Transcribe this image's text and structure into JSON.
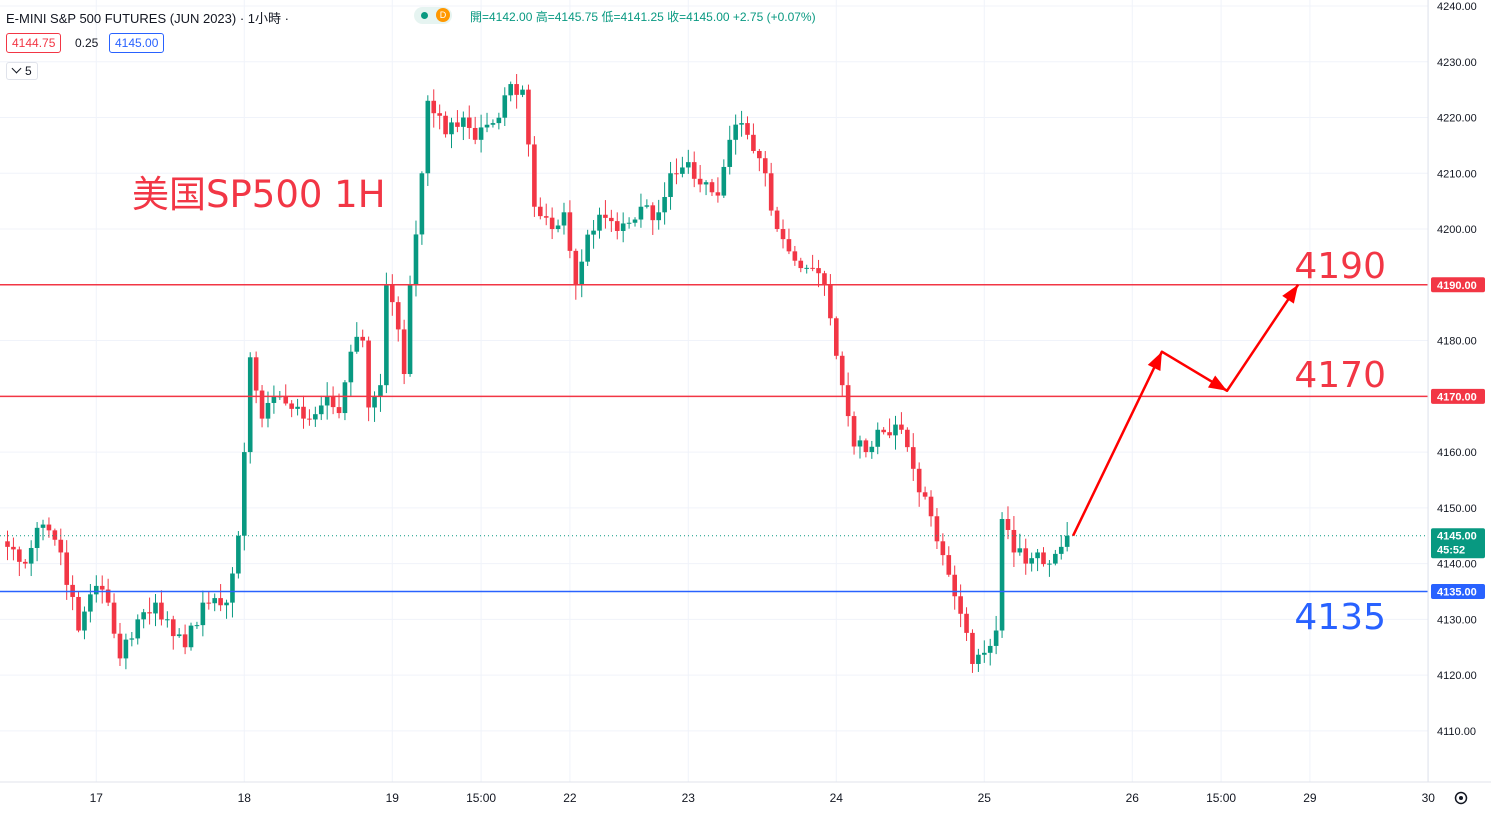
{
  "header": {
    "symbol_title": "E-MINI S&P 500 FUTURES (JUN 2023) · 1小時 ·",
    "status_label": "D",
    "ohlc_text": "開=4142.00 高=4145.75 低=4141.25 收=4145.00 +2.75 (+0.07%)",
    "bid": "4144.75",
    "spread": "0.25",
    "ask": "4145.00",
    "indicator_count": "5"
  },
  "annotations": {
    "title": "美国SP500 1H",
    "level_4190": "4190",
    "level_4170": "4170",
    "level_4135": "4135"
  },
  "price_tags": {
    "current_price": "4145.00",
    "countdown": "45:52",
    "line_4190": "4190.00",
    "line_4170": "4170.00",
    "line_4135": "4135.00"
  },
  "colors": {
    "up": "#089981",
    "down": "#f23645",
    "resistance": "#f23645",
    "support": "#2962ff",
    "arrow": "#ff0000"
  },
  "chart_data": {
    "type": "candlestick",
    "timeframe": "1H",
    "ylim": [
      4102,
      4241
    ],
    "y_ticks": [
      "4110.00",
      "4120.00",
      "4130.00",
      "4140.00",
      "4150.00",
      "4160.00",
      "4170.00",
      "4180.00",
      "4190.00",
      "4200.00",
      "4210.00",
      "4220.00",
      "4230.00",
      "4240.00"
    ],
    "x_ticks": [
      {
        "label": "17",
        "slot": 15
      },
      {
        "label": "18",
        "slot": 40
      },
      {
        "label": "19",
        "slot": 65
      },
      {
        "label": "15:00",
        "slot": 80
      },
      {
        "label": "22",
        "slot": 95
      },
      {
        "label": "23",
        "slot": 115
      },
      {
        "label": "24",
        "slot": 140
      },
      {
        "label": "25",
        "slot": 165
      },
      {
        "label": "26",
        "slot": 190
      },
      {
        "label": "15:00",
        "slot": 205
      },
      {
        "label": "29",
        "slot": 220
      },
      {
        "label": "30",
        "slot": 240
      }
    ],
    "horizontal_lines": [
      {
        "value": 4190,
        "style": "resistance"
      },
      {
        "value": 4170,
        "style": "resistance"
      },
      {
        "value": 4135,
        "style": "support"
      }
    ],
    "current_price_line": 4145,
    "projection_path": [
      [
        4145,
        180
      ],
      [
        4178,
        195
      ],
      [
        4171,
        206
      ],
      [
        4190,
        218
      ]
    ],
    "anchors": [
      [
        0,
        4143
      ],
      [
        3,
        4140
      ],
      [
        6,
        4147
      ],
      [
        9,
        4142
      ],
      [
        12,
        4128
      ],
      [
        15,
        4136
      ],
      [
        17,
        4133
      ],
      [
        19,
        4123
      ],
      [
        22,
        4130
      ],
      [
        25,
        4133
      ],
      [
        28,
        4127
      ],
      [
        30,
        4125
      ],
      [
        33,
        4133
      ],
      [
        37,
        4133
      ],
      [
        39,
        4145
      ],
      [
        40,
        4160
      ],
      [
        41,
        4177
      ],
      [
        43,
        4166
      ],
      [
        46,
        4170
      ],
      [
        50,
        4166
      ],
      [
        54,
        4170
      ],
      [
        56,
        4167
      ],
      [
        58,
        4178
      ],
      [
        60,
        4180
      ],
      [
        61,
        4168
      ],
      [
        63,
        4172
      ],
      [
        64,
        4190
      ],
      [
        66,
        4182
      ],
      [
        67,
        4174
      ],
      [
        68,
        4190
      ],
      [
        70,
        4210
      ],
      [
        71,
        4223
      ],
      [
        74,
        4217
      ],
      [
        77,
        4220
      ],
      [
        79,
        4216
      ],
      [
        82,
        4219
      ],
      [
        85,
        4226
      ],
      [
        87,
        4225
      ],
      [
        89,
        4204
      ],
      [
        92,
        4200
      ],
      [
        94,
        4203
      ],
      [
        96,
        4190
      ],
      [
        98,
        4199
      ],
      [
        101,
        4202
      ],
      [
        104,
        4201
      ],
      [
        107,
        4204
      ],
      [
        110,
        4203
      ],
      [
        112,
        4210
      ],
      [
        115,
        4212
      ],
      [
        117,
        4208
      ],
      [
        120,
        4206
      ],
      [
        122,
        4216
      ],
      [
        124,
        4219
      ],
      [
        126,
        4214
      ],
      [
        128,
        4210
      ],
      [
        130,
        4200
      ],
      [
        132,
        4196
      ],
      [
        134,
        4193
      ],
      [
        136,
        4193
      ],
      [
        138,
        4190
      ],
      [
        139,
        4184
      ],
      [
        141,
        4172
      ],
      [
        143,
        4161
      ],
      [
        145,
        4160
      ],
      [
        147,
        4164
      ],
      [
        149,
        4163
      ],
      [
        151,
        4164
      ],
      [
        153,
        4157
      ],
      [
        155,
        4152
      ],
      [
        157,
        4144
      ],
      [
        159,
        4138
      ],
      [
        161,
        4131
      ],
      [
        163,
        4122
      ],
      [
        165,
        4124
      ],
      [
        167,
        4128
      ],
      [
        168,
        4148
      ],
      [
        170,
        4142
      ],
      [
        172,
        4140
      ],
      [
        174,
        4142
      ],
      [
        176,
        4140
      ],
      [
        178,
        4143
      ],
      [
        179,
        4145
      ]
    ],
    "volatility": 1.6
  }
}
